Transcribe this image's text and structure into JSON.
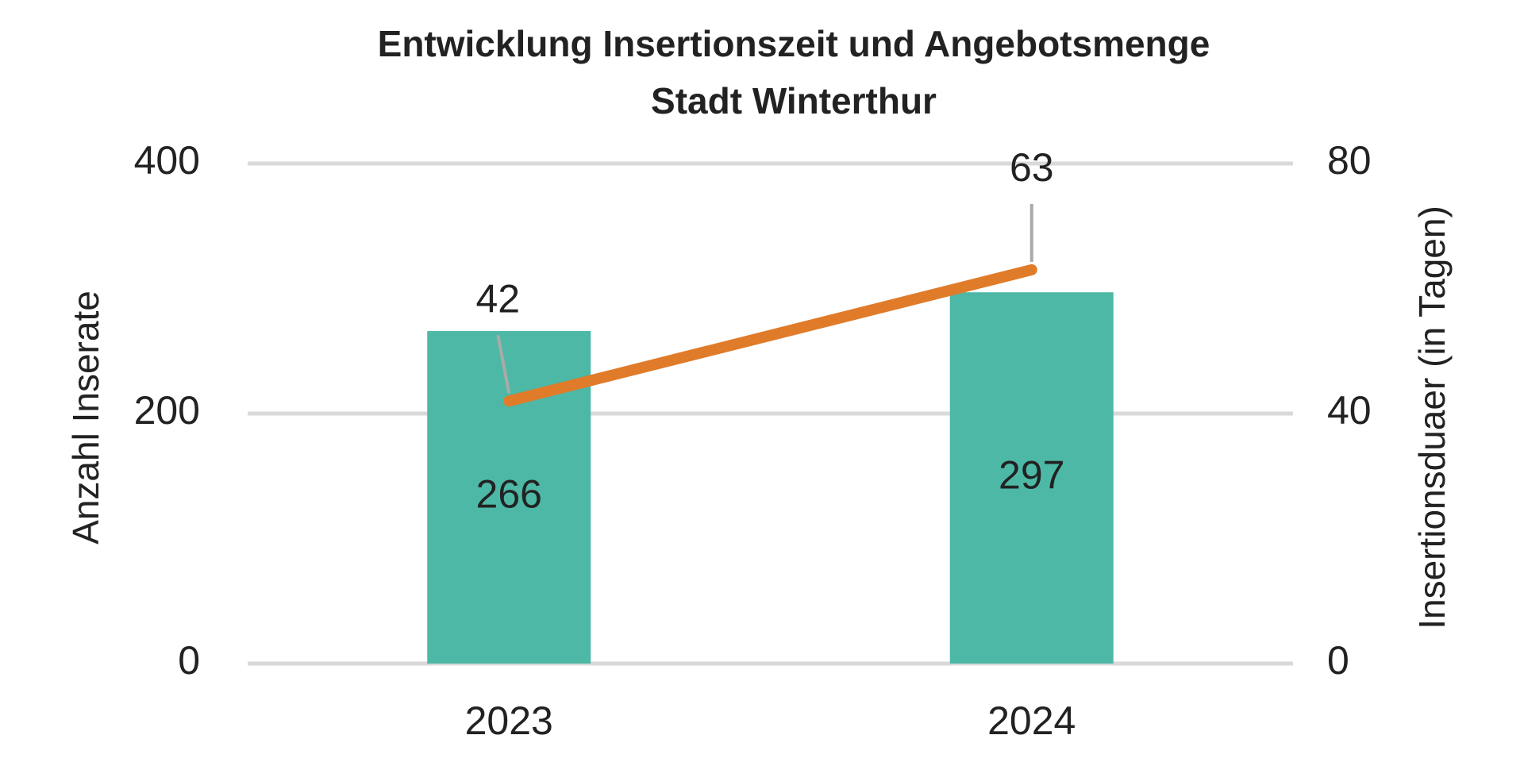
{
  "chart_data": {
    "type": "bar",
    "title": "Entwicklung Insertionszeit und Angebotsmenge",
    "subtitle": "Stadt Winterthur",
    "ylabel": "Anzahl Inserate",
    "y2label": "Insertionsduaer (in Tagen)",
    "categories": [
      "2023",
      "2024"
    ],
    "series": [
      {
        "type": "bar",
        "color": "#4db8a5",
        "values": [
          266,
          297
        ]
      },
      {
        "type": "line",
        "axis": "y2",
        "color": "#e07b2a",
        "values": [
          42,
          63
        ]
      }
    ],
    "ylim": [
      0,
      400
    ],
    "yticks": [
      0,
      200,
      400
    ],
    "y2lim": [
      0,
      80
    ],
    "y2ticks": [
      0,
      40,
      80
    ],
    "grid": true
  }
}
